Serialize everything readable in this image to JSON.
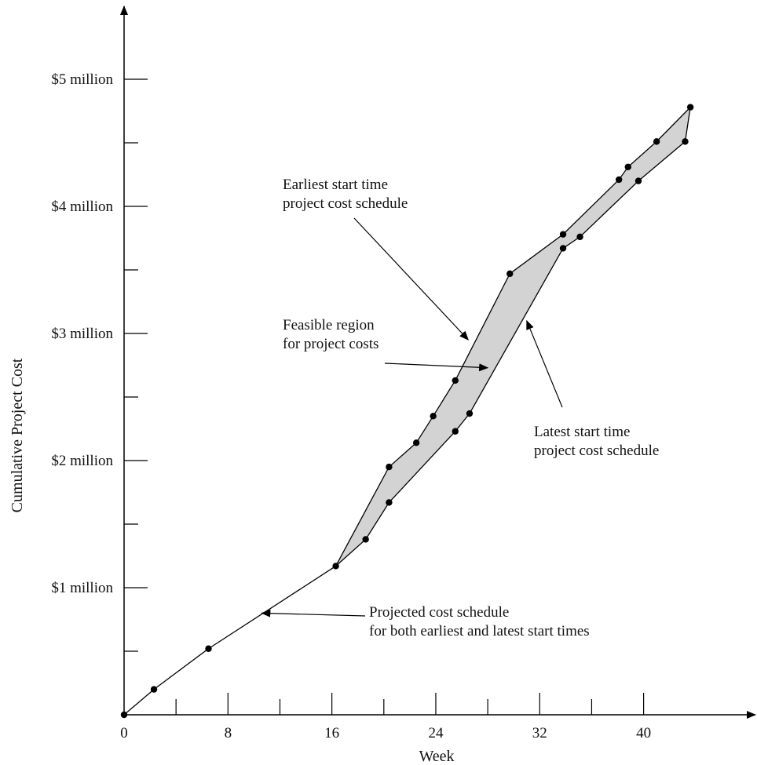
{
  "chart_data": {
    "type": "line",
    "xlabel": "Week",
    "ylabel": "Cumulative Project Cost",
    "xlim": [
      0,
      48
    ],
    "ylim": [
      0,
      5.3
    ],
    "x_ticks": [
      0,
      8,
      16,
      24,
      32,
      40
    ],
    "x_tick_labels": [
      "0",
      "8",
      "16",
      "24",
      "32",
      "40"
    ],
    "x_minor_ticks": [
      4,
      12,
      20,
      28,
      36
    ],
    "y_ticks": [
      1,
      2,
      3,
      4,
      5
    ],
    "y_tick_labels": [
      "$1 million",
      "$2 million",
      "$3 million",
      "$4 million",
      "$5 million"
    ],
    "y_minor_ticks": [
      0.5,
      1.5,
      2.5,
      3.5,
      4.5
    ],
    "grid": false,
    "colors": {
      "line": "#000000",
      "feasible_fill": "#d3d3d3",
      "points": "#000000"
    },
    "series": [
      {
        "points": [
          [
            0,
            0
          ],
          [
            2.3,
            0.2
          ],
          [
            6.5,
            0.52
          ],
          [
            16.3,
            1.17
          ]
        ]
      },
      {
        "points": [
          [
            16.3,
            1.17
          ],
          [
            20.4,
            1.95
          ],
          [
            22.5,
            2.14
          ],
          [
            23.8,
            2.35
          ],
          [
            25.5,
            2.63
          ],
          [
            29.7,
            3.47
          ],
          [
            33.8,
            3.78
          ],
          [
            38.1,
            4.21
          ],
          [
            38.8,
            4.31
          ],
          [
            41,
            4.51
          ],
          [
            43.6,
            4.78
          ]
        ]
      },
      {
        "points": [
          [
            16.3,
            1.17
          ],
          [
            18.6,
            1.38
          ],
          [
            20.4,
            1.67
          ],
          [
            25.5,
            2.23
          ],
          [
            26.6,
            2.37
          ],
          [
            33.8,
            3.67
          ],
          [
            35.1,
            3.76
          ],
          [
            39.6,
            4.2
          ],
          [
            43.2,
            4.51
          ],
          [
            43.6,
            4.78
          ]
        ]
      }
    ],
    "annotations": [
      {
        "lines": [
          "Earliest start time",
          "project cost schedule"
        ],
        "target": [
          26.5,
          2.95
        ]
      },
      {
        "lines": [
          "Feasible region",
          "for project costs"
        ],
        "target": [
          28,
          2.73
        ]
      },
      {
        "lines": [
          "Latest start time",
          "project cost schedule"
        ],
        "target": [
          31,
          3.1
        ]
      },
      {
        "lines": [
          "Projected cost schedule",
          "for both earliest and latest start times"
        ],
        "target": [
          10.6,
          0.8
        ]
      }
    ]
  }
}
